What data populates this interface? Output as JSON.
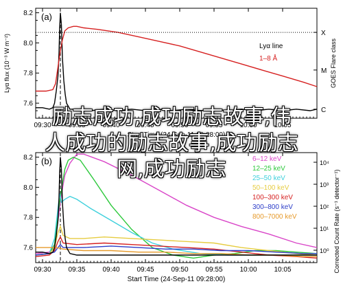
{
  "chart_data": [
    {
      "panel_label": "(a)",
      "type": "line",
      "ylabel": "Lyα flux (10⁻³ W m⁻²)",
      "y_ticks": [
        "7.6",
        "7.8",
        "8.0",
        "8.2"
      ],
      "ylim": [
        7.5,
        8.23
      ],
      "x_ticks": [
        "09:30",
        "09:35",
        "09:40",
        "09:45",
        "09:50",
        "09:55",
        "10:00",
        "10:05"
      ],
      "xlabel": "Start Time (24-Sep-11 09:28:00)",
      "right_axis_label": "GOES Flare class",
      "right_ticks": [
        "X",
        "M",
        "C"
      ],
      "legend": [
        {
          "label": "Lyα line",
          "color": "#000000"
        },
        {
          "label": "1–8 Å",
          "color": "#d62020"
        }
      ],
      "series": [
        {
          "name": "Lyα line",
          "color": "#000000",
          "points": [
            [
              0,
              7.57
            ],
            [
              2,
              7.57
            ],
            [
              4,
              7.56
            ],
            [
              5,
              7.57
            ],
            [
              5.5,
              7.6
            ],
            [
              6,
              7.68
            ],
            [
              6.5,
              7.78
            ],
            [
              6.8,
              7.93
            ],
            [
              7.0,
              8.1
            ],
            [
              7.2,
              8.2
            ],
            [
              7.5,
              8.12
            ],
            [
              7.8,
              7.9
            ],
            [
              8.2,
              7.75
            ],
            [
              8.6,
              7.66
            ],
            [
              9,
              7.6
            ],
            [
              10,
              7.56
            ],
            [
              11,
              7.56
            ],
            [
              12,
              7.55
            ],
            [
              13,
              7.56
            ],
            [
              16,
              7.55
            ],
            [
              20,
              7.56
            ],
            [
              24,
              7.55
            ],
            [
              28,
              7.56
            ],
            [
              32,
              7.55
            ],
            [
              36,
              7.56
            ],
            [
              40,
              7.55
            ],
            [
              44,
              7.56
            ],
            [
              48,
              7.55
            ],
            [
              52,
              7.56
            ],
            [
              56,
              7.55
            ],
            [
              60,
              7.56
            ],
            [
              64,
              7.55
            ],
            [
              68,
              7.56
            ],
            [
              72,
              7.55
            ],
            [
              76,
              7.56
            ],
            [
              80,
              7.55
            ],
            [
              82,
              7.56
            ]
          ]
        },
        {
          "name": "1–8 Å",
          "color": "#d62020",
          "points": [
            [
              0,
              7.68
            ],
            [
              3,
              7.68
            ],
            [
              5,
              7.69
            ],
            [
              5.8,
              7.73
            ],
            [
              6.5,
              7.84
            ],
            [
              7.2,
              7.95
            ],
            [
              7.8,
              8.02
            ],
            [
              8.5,
              8.08
            ],
            [
              9.5,
              8.1
            ],
            [
              11,
              8.11
            ],
            [
              12,
              8.11
            ],
            [
              14,
              8.1
            ],
            [
              18,
              8.09
            ],
            [
              24,
              8.07
            ],
            [
              30,
              8.04
            ],
            [
              36,
              8.01
            ],
            [
              42,
              7.98
            ],
            [
              48,
              7.94
            ],
            [
              54,
              7.9
            ],
            [
              60,
              7.86
            ],
            [
              66,
              7.82
            ],
            [
              72,
              7.78
            ],
            [
              78,
              7.74
            ],
            [
              82,
              7.71
            ]
          ]
        }
      ],
      "hline_class_x_level": 8.07,
      "peak_time_marker_min": 7.2
    },
    {
      "panel_label": "(b)",
      "type": "line",
      "y_ticks": [
        "7.6",
        "7.8",
        "8.0",
        "8.2"
      ],
      "ylim": [
        7.5,
        8.23
      ],
      "x_ticks": [
        "09:30",
        "09:35",
        "09:40",
        "09:45",
        "09:50",
        "09:55",
        "10:00",
        "10:05"
      ],
      "xlabel": "Start Time (24-Sep-11 09:28:00)",
      "right_axis_label": "Corrected Count Rate (s⁻¹ detector⁻¹)",
      "right_ticks": [
        "10⁴",
        "10³",
        "10²",
        "10¹",
        "10⁰"
      ],
      "series": [
        {
          "name": "6–12 keV",
          "color": "#d946c8",
          "points": [
            [
              0,
              7.56
            ],
            [
              4,
              7.57
            ],
            [
              5.5,
              7.62
            ],
            [
              6.5,
              7.78
            ],
            [
              7.5,
              7.95
            ],
            [
              8.5,
              8.08
            ],
            [
              10,
              8.16
            ],
            [
              12,
              8.22
            ],
            [
              14,
              8.22
            ],
            [
              20,
              8.17
            ],
            [
              28,
              8.08
            ],
            [
              36,
              7.98
            ],
            [
              44,
              7.88
            ],
            [
              52,
              7.8
            ],
            [
              60,
              7.74
            ],
            [
              68,
              7.69
            ],
            [
              76,
              7.63
            ],
            [
              82,
              7.6
            ]
          ]
        },
        {
          "name": "12–25 keV",
          "color": "#2bc83a",
          "points": [
            [
              0,
              7.55
            ],
            [
              4,
              7.56
            ],
            [
              5.5,
              7.62
            ],
            [
              6.5,
              7.82
            ],
            [
              7.5,
              7.98
            ],
            [
              8.5,
              8.12
            ],
            [
              9.5,
              8.18
            ],
            [
              11,
              8.2
            ],
            [
              13,
              8.18
            ],
            [
              17,
              8.05
            ],
            [
              22,
              7.88
            ],
            [
              28,
              7.72
            ],
            [
              34,
              7.6
            ],
            [
              40,
              7.55
            ],
            [
              46,
              7.53
            ],
            [
              52,
              7.55
            ],
            [
              58,
              7.56
            ],
            [
              64,
              7.58
            ],
            [
              70,
              7.58
            ],
            [
              76,
              7.57
            ],
            [
              82,
              7.56
            ]
          ]
        },
        {
          "name": "25–50 keV",
          "color": "#3ed0dc",
          "points": [
            [
              0,
              7.55
            ],
            [
              4,
              7.56
            ],
            [
              5.5,
              7.66
            ],
            [
              6.5,
              7.86
            ],
            [
              7,
              7.96
            ],
            [
              7.5,
              7.9
            ],
            [
              8.5,
              7.92
            ],
            [
              10,
              7.94
            ],
            [
              12,
              7.92
            ],
            [
              16,
              7.86
            ],
            [
              22,
              7.78
            ],
            [
              28,
              7.7
            ],
            [
              34,
              7.63
            ],
            [
              40,
              7.59
            ],
            [
              48,
              7.56
            ],
            [
              56,
              7.55
            ],
            [
              64,
              7.55
            ],
            [
              72,
              7.55
            ],
            [
              82,
              7.55
            ]
          ]
        },
        {
          "name": "50–100 keV",
          "color": "#e6cc40",
          "points": [
            [
              0,
              7.55
            ],
            [
              4,
              7.56
            ],
            [
              5.5,
              7.6
            ],
            [
              6.5,
              7.7
            ],
            [
              7.2,
              7.74
            ],
            [
              8,
              7.68
            ],
            [
              10,
              7.66
            ],
            [
              14,
              7.66
            ],
            [
              20,
              7.67
            ],
            [
              28,
              7.66
            ],
            [
              36,
              7.65
            ],
            [
              44,
              7.64
            ],
            [
              52,
              7.63
            ],
            [
              60,
              7.6
            ],
            [
              68,
              7.58
            ],
            [
              76,
              7.56
            ],
            [
              82,
              7.55
            ]
          ]
        },
        {
          "name": "100–300 keV",
          "color": "#d62020",
          "points": [
            [
              0,
              7.54
            ],
            [
              4,
              7.55
            ],
            [
              5.5,
              7.58
            ],
            [
              6.5,
              7.64
            ],
            [
              7.2,
              7.67
            ],
            [
              8,
              7.63
            ],
            [
              12,
              7.62
            ],
            [
              20,
              7.63
            ],
            [
              28,
              7.62
            ],
            [
              36,
              7.61
            ],
            [
              44,
              7.6
            ],
            [
              52,
              7.59
            ],
            [
              60,
              7.57
            ],
            [
              68,
              7.55
            ],
            [
              76,
              7.54
            ],
            [
              82,
              7.53
            ]
          ]
        },
        {
          "name": "300–800 keV",
          "color": "#2b3cc8",
          "points": [
            [
              0,
              7.55
            ],
            [
              4,
              7.56
            ],
            [
              5.5,
              7.57
            ],
            [
              6.5,
              7.6
            ],
            [
              7.2,
              7.62
            ],
            [
              8,
              7.6
            ],
            [
              14,
              7.6
            ],
            [
              22,
              7.61
            ],
            [
              30,
              7.6
            ],
            [
              38,
              7.59
            ],
            [
              46,
              7.59
            ],
            [
              54,
              7.58
            ],
            [
              62,
              7.58
            ],
            [
              70,
              7.57
            ],
            [
              78,
              7.56
            ],
            [
              82,
              7.56
            ]
          ]
        },
        {
          "name": "800–7000 keV",
          "color": "#e69a2b",
          "points": [
            [
              0,
              7.6
            ],
            [
              4,
              7.6
            ],
            [
              6,
              7.6
            ],
            [
              8,
              7.59
            ],
            [
              14,
              7.58
            ],
            [
              22,
              7.58
            ],
            [
              30,
              7.57
            ],
            [
              38,
              7.57
            ],
            [
              46,
              7.56
            ],
            [
              54,
              7.56
            ],
            [
              62,
              7.55
            ],
            [
              70,
              7.55
            ],
            [
              78,
              7.54
            ],
            [
              82,
              7.54
            ]
          ]
        },
        {
          "name": "Lyα line",
          "color": "#000000",
          "points": [
            [
              0,
              7.57
            ],
            [
              2,
              7.57
            ],
            [
              4,
              7.56
            ],
            [
              5,
              7.57
            ],
            [
              5.5,
              7.6
            ],
            [
              6,
              7.68
            ],
            [
              6.5,
              7.78
            ],
            [
              6.8,
              7.93
            ],
            [
              7.0,
              8.1
            ],
            [
              7.2,
              8.2
            ],
            [
              7.5,
              8.12
            ],
            [
              7.8,
              7.9
            ],
            [
              8.2,
              7.75
            ],
            [
              8.6,
              7.66
            ],
            [
              9,
              7.6
            ],
            [
              10,
              7.56
            ],
            [
              12,
              7.55
            ],
            [
              16,
              7.55
            ],
            [
              24,
              7.55
            ],
            [
              32,
              7.55
            ],
            [
              40,
              7.55
            ],
            [
              48,
              7.55
            ],
            [
              56,
              7.55
            ],
            [
              64,
              7.55
            ],
            [
              72,
              7.55
            ],
            [
              82,
              7.55
            ]
          ]
        }
      ],
      "peak_time_marker_min": 7.2
    }
  ],
  "overlay_text": {
    "line1": "励志成功,成功励志故事,伟",
    "line2": "人成功的励志故事,成功励志",
    "line3": "网,成功励志"
  }
}
